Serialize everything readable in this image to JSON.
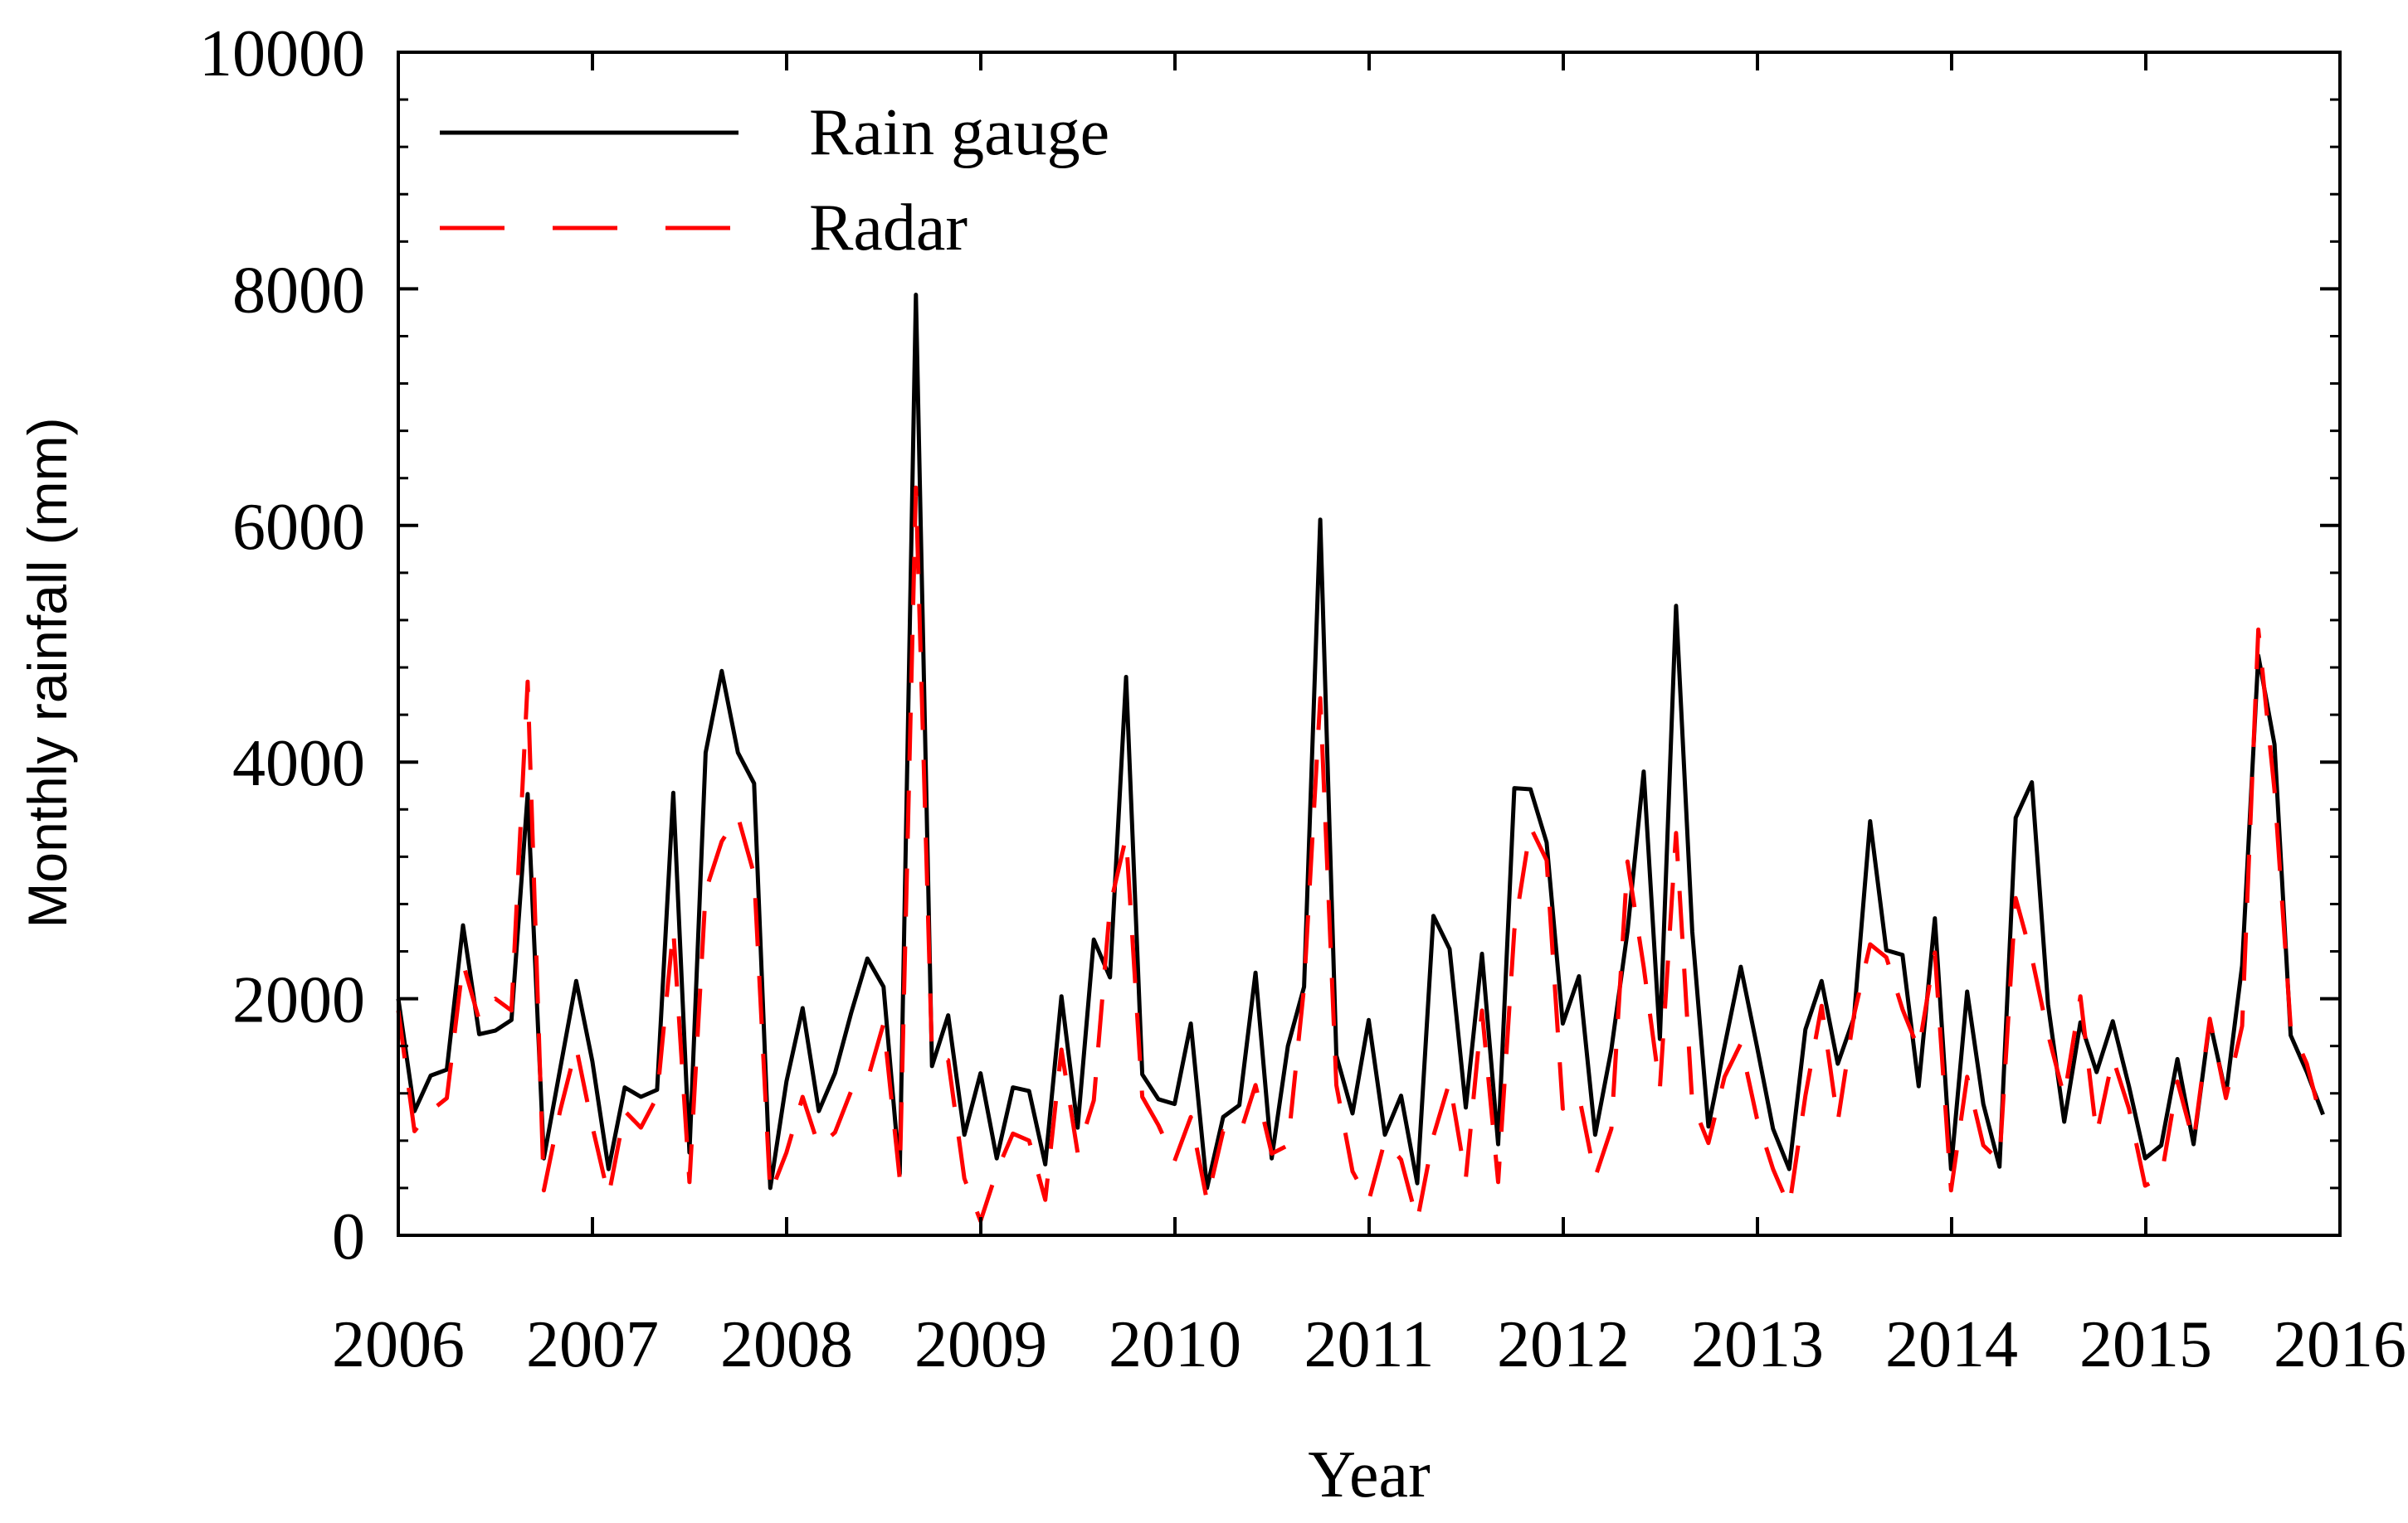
{
  "chart_data": {
    "type": "line",
    "xlabel": "Year",
    "ylabel": "Monthly rainfall (mm)",
    "xlim": [
      2006,
      2016
    ],
    "ylim": [
      0,
      10000
    ],
    "x_ticks": [
      2006,
      2007,
      2008,
      2009,
      2010,
      2011,
      2012,
      2013,
      2014,
      2015,
      2016
    ],
    "y_ticks": [
      0,
      2000,
      4000,
      6000,
      8000,
      10000
    ],
    "grid": false,
    "legend": "top-left",
    "x_start": 2006,
    "x_step": 0.0833,
    "series": [
      {
        "name": "Rain gauge",
        "color": "#000000",
        "dash": "solid",
        "values": [
          2000,
          1050,
          1350,
          1400,
          2620,
          1700,
          1730,
          1820,
          3730,
          650,
          1400,
          2150,
          1470,
          560,
          1250,
          1170,
          1230,
          3740,
          700,
          4080,
          4770,
          4080,
          3820,
          400,
          1300,
          1920,
          1050,
          1370,
          1880,
          2340,
          2100,
          520,
          7950,
          1430,
          1860,
          850,
          1370,
          650,
          1250,
          1220,
          600,
          2020,
          910,
          2500,
          2180,
          4720,
          1360,
          1150,
          1110,
          1790,
          400,
          1000,
          1100,
          2220,
          650,
          1600,
          2100,
          6050,
          1520,
          1030,
          1820,
          850,
          1180,
          440,
          2700,
          2420,
          1080,
          2380,
          770,
          3780,
          3770,
          3320,
          1790,
          2190,
          850,
          1570,
          2570,
          3920,
          1660,
          5320,
          2570,
          920,
          1600,
          2270,
          1600,
          900,
          560,
          1740,
          2150,
          1450,
          1840,
          3500,
          2410,
          2370,
          1260,
          2680,
          560,
          2060,
          1110,
          580,
          3530,
          3830,
          1950,
          960,
          1800,
          1380,
          1810,
          1260,
          650,
          760,
          1490,
          770,
          1810,
          1190,
          2280,
          4900,
          4150,
          1690,
          1380,
          1020
        ]
      },
      {
        "name": "Radar",
        "color": "#ff0000",
        "dash": "dashed",
        "values": [
          1900,
          880,
          1050,
          1160,
          2300,
          1820,
          2000,
          1900,
          4680,
          380,
          1050,
          1590,
          920,
          330,
          1050,
          910,
          1170,
          2590,
          450,
          2910,
          3330,
          3540,
          3050,
          350,
          700,
          1170,
          750,
          870,
          1220,
          1310,
          1790,
          480,
          6320,
          1520,
          1480,
          480,
          120,
          540,
          860,
          800,
          300,
          1570,
          700,
          1140,
          2780,
          3370,
          1170,
          930,
          630,
          1000,
          290,
          880,
          840,
          1270,
          690,
          760,
          2100,
          4540,
          1270,
          540,
          290,
          800,
          640,
          120,
          840,
          1300,
          480,
          1900,
          450,
          2580,
          3450,
          3170,
          1070,
          1180,
          490,
          900,
          3160,
          2270,
          1240,
          3400,
          1120,
          780,
          1340,
          1620,
          990,
          560,
          240,
          1180,
          1940,
          960,
          1860,
          2460,
          2350,
          1910,
          1570,
          2390,
          380,
          1340,
          760,
          630,
          2850,
          2350,
          1700,
          1170,
          2020,
          850,
          1500,
          1070,
          420,
          490,
          1300,
          790,
          1830,
          1160,
          1770,
          5120,
          3760,
          1760,
          1450,
          920
        ]
      }
    ]
  }
}
